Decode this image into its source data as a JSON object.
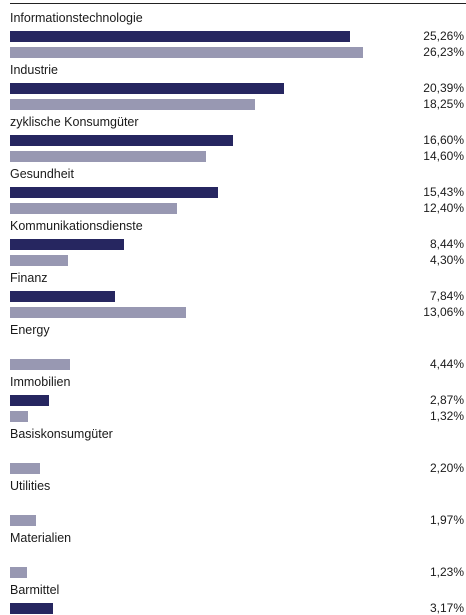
{
  "chart_data": {
    "type": "bar",
    "orientation": "horizontal",
    "grid": false,
    "x_max": 30,
    "colors": {
      "series_1": "#262660",
      "series_2": "#9898b2"
    },
    "categories": [
      "Informationstechnologie",
      "Industrie",
      "zyklische Konsumgüter",
      "Gesundheit",
      "Kommunikationsdienste",
      "Finanz",
      "Energy",
      "Immobilien",
      "Basiskonsumgüter",
      "Utilities",
      "Materialien",
      "Barmittel"
    ],
    "series": [
      {
        "values": [
          25.26,
          20.39,
          16.6,
          15.43,
          8.44,
          7.84,
          null,
          2.87,
          null,
          null,
          null,
          3.17
        ],
        "labels": [
          "25,26%",
          "20,39%",
          "16,60%",
          "15,43%",
          "8,44%",
          "7,84%",
          null,
          "2,87%",
          null,
          null,
          null,
          "3,17%"
        ]
      },
      {
        "values": [
          26.23,
          18.25,
          14.6,
          12.4,
          4.3,
          13.06,
          4.44,
          1.32,
          2.2,
          1.97,
          1.23,
          null
        ],
        "labels": [
          "26,23%",
          "18,25%",
          "14,60%",
          "12,40%",
          "4,30%",
          "13,06%",
          "4,44%",
          "1,32%",
          "2,20%",
          "1,97%",
          "1,23%",
          null
        ]
      }
    ]
  }
}
